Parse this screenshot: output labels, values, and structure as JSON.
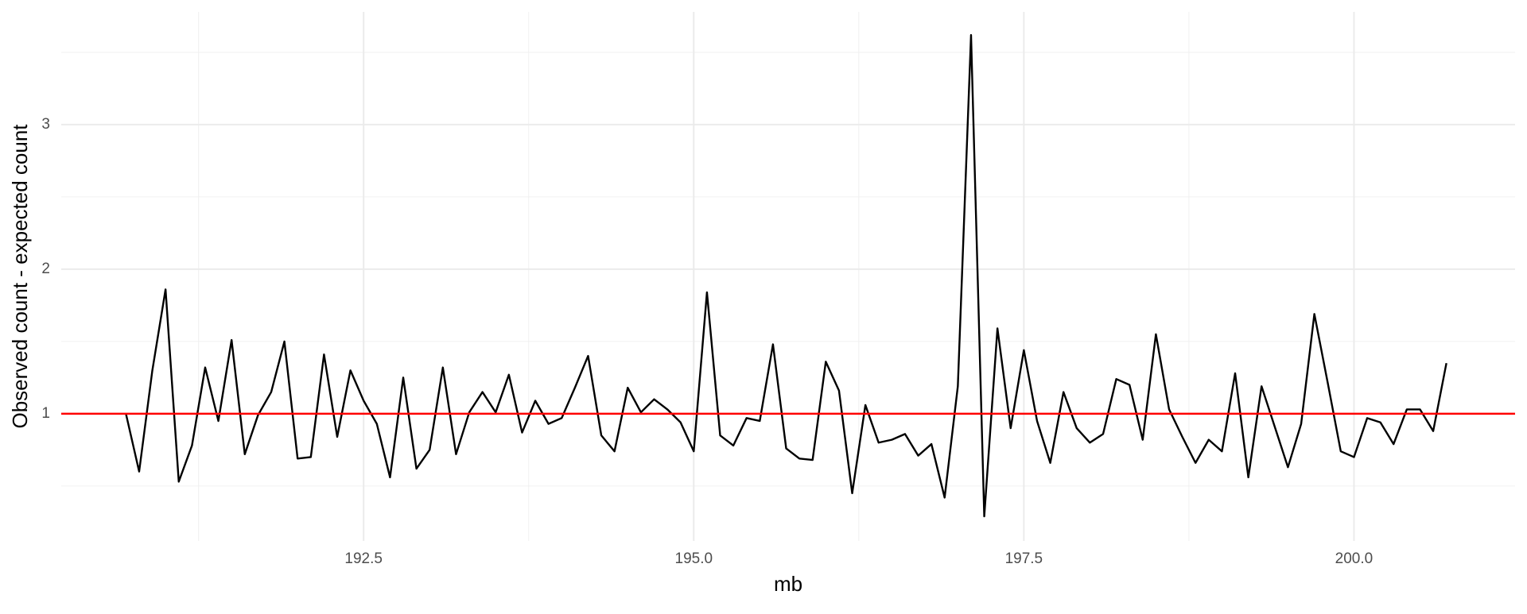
{
  "chart_data": {
    "type": "line",
    "xlabel": "mb",
    "ylabel": "Observed count - expected count",
    "x": [
      190.7,
      190.8,
      190.9,
      191.0,
      191.1,
      191.2,
      191.3,
      191.4,
      191.5,
      191.6,
      191.7,
      191.8,
      191.9,
      192.0,
      192.1,
      192.2,
      192.3,
      192.4,
      192.5,
      192.6,
      192.7,
      192.8,
      192.9,
      193.0,
      193.1,
      193.2,
      193.3,
      193.4,
      193.5,
      193.6,
      193.7,
      193.8,
      193.9,
      194.0,
      194.1,
      194.2,
      194.3,
      194.4,
      194.5,
      194.6,
      194.7,
      194.8,
      194.9,
      195.0,
      195.1,
      195.2,
      195.3,
      195.4,
      195.5,
      195.6,
      195.7,
      195.8,
      195.9,
      196.0,
      196.1,
      196.2,
      196.3,
      196.4,
      196.5,
      196.6,
      196.7,
      196.8,
      196.9,
      197.0,
      197.1,
      197.2,
      197.3,
      197.4,
      197.5,
      197.6,
      197.7,
      197.8,
      197.9,
      198.0,
      198.1,
      198.2,
      198.3,
      198.4,
      198.5,
      198.6,
      198.7,
      198.8,
      198.9,
      199.0,
      199.1,
      199.2,
      199.3,
      199.4,
      199.5,
      199.6,
      199.7,
      199.8,
      199.9,
      200.0,
      200.1,
      200.2,
      200.3,
      200.4,
      200.5,
      200.6,
      200.7
    ],
    "values": [
      1.0,
      0.6,
      1.3,
      1.86,
      0.53,
      0.78,
      1.32,
      0.95,
      1.51,
      0.72,
      0.99,
      1.15,
      1.5,
      0.69,
      0.7,
      1.41,
      0.84,
      1.3,
      1.09,
      0.93,
      0.56,
      1.25,
      0.62,
      0.75,
      1.32,
      0.72,
      1.01,
      1.15,
      1.01,
      1.27,
      0.87,
      1.09,
      0.93,
      0.97,
      1.18,
      1.4,
      0.85,
      0.74,
      1.18,
      1.01,
      1.1,
      1.03,
      0.94,
      0.74,
      1.84,
      0.85,
      0.78,
      0.97,
      0.95,
      1.48,
      0.76,
      0.69,
      0.68,
      1.36,
      1.16,
      0.45,
      1.06,
      0.8,
      0.82,
      0.86,
      0.71,
      0.79,
      0.42,
      1.19,
      3.62,
      0.29,
      1.59,
      0.9,
      1.44,
      0.95,
      0.66,
      1.15,
      0.9,
      0.8,
      0.86,
      1.24,
      1.2,
      0.82,
      1.55,
      1.03,
      0.84,
      0.66,
      0.82,
      0.74,
      1.28,
      0.56,
      1.19,
      0.91,
      0.63,
      0.93,
      1.69,
      1.22,
      0.74,
      0.7,
      0.97,
      0.94,
      0.79,
      1.03,
      1.03,
      0.88,
      1.35
    ],
    "color": "#000000",
    "reference_line": {
      "value": 1,
      "color": "#ff0000"
    },
    "xlim": [
      190.21,
      201.22
    ],
    "xticks": [
      192.5,
      {
        "value": 195,
        "label": "195.0"
      },
      197.5,
      {
        "value": 200,
        "label": "200.0"
      }
    ],
    "ylim": [
      0.12,
      3.78
    ],
    "yticks": [
      1,
      2,
      3
    ],
    "grid": true
  }
}
